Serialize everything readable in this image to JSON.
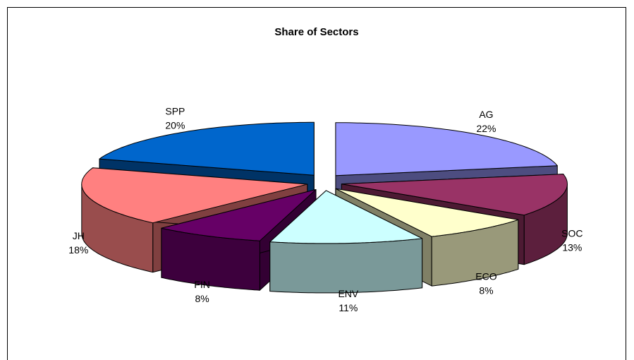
{
  "chart_data": {
    "type": "pie",
    "title": "Share of Sectors",
    "categories": [
      "AG",
      "SOC",
      "ECO",
      "ENV",
      "FIN",
      "JH",
      "SPP"
    ],
    "values": [
      22,
      13,
      8,
      11,
      8,
      18,
      20
    ],
    "value_labels": [
      "22%",
      "13%",
      "8%",
      "11%",
      "8%",
      "18%",
      "20%"
    ],
    "colors": [
      "#9999ff",
      "#993366",
      "#ffffcc",
      "#ccffff",
      "#660066",
      "#ff8080",
      "#0066cc"
    ],
    "legend": false
  }
}
